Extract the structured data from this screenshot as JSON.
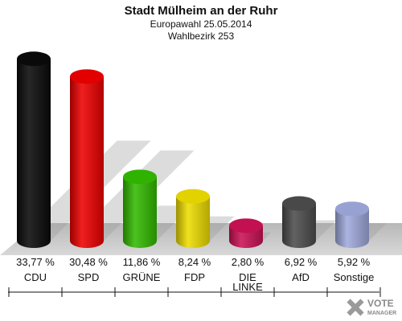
{
  "chart_data": {
    "type": "bar",
    "title": "Stadt Mülheim an der Ruhr",
    "subtitle_1": "Europawahl 25.05.2014",
    "subtitle_2": "Wahlbezirk 253",
    "categories": [
      "CDU",
      "SPD",
      "GRÜNE",
      "FDP",
      "DIE LINKE",
      "AfD",
      "Sonstige"
    ],
    "category_lines": [
      [
        "CDU"
      ],
      [
        "SPD"
      ],
      [
        "GRÜNE"
      ],
      [
        "FDP"
      ],
      [
        "DIE",
        "LINKE"
      ],
      [
        "AfD"
      ],
      [
        "Sonstige"
      ]
    ],
    "values": [
      33.77,
      30.48,
      11.86,
      8.24,
      2.8,
      6.92,
      5.92
    ],
    "value_labels": [
      "33,77 %",
      "30,48 %",
      "11,86 %",
      "8,24 %",
      "2,80 %",
      "6,92 %",
      "5,92 %"
    ],
    "colors": [
      "#0a0a0a",
      "#ee0000",
      "#33bb00",
      "#eedd00",
      "#cc1155",
      "#4d4d4d",
      "#a0aadd"
    ],
    "ylim": [
      0,
      35
    ]
  },
  "logo": {
    "line1": "VOTE",
    "line2": "MANAGER"
  }
}
